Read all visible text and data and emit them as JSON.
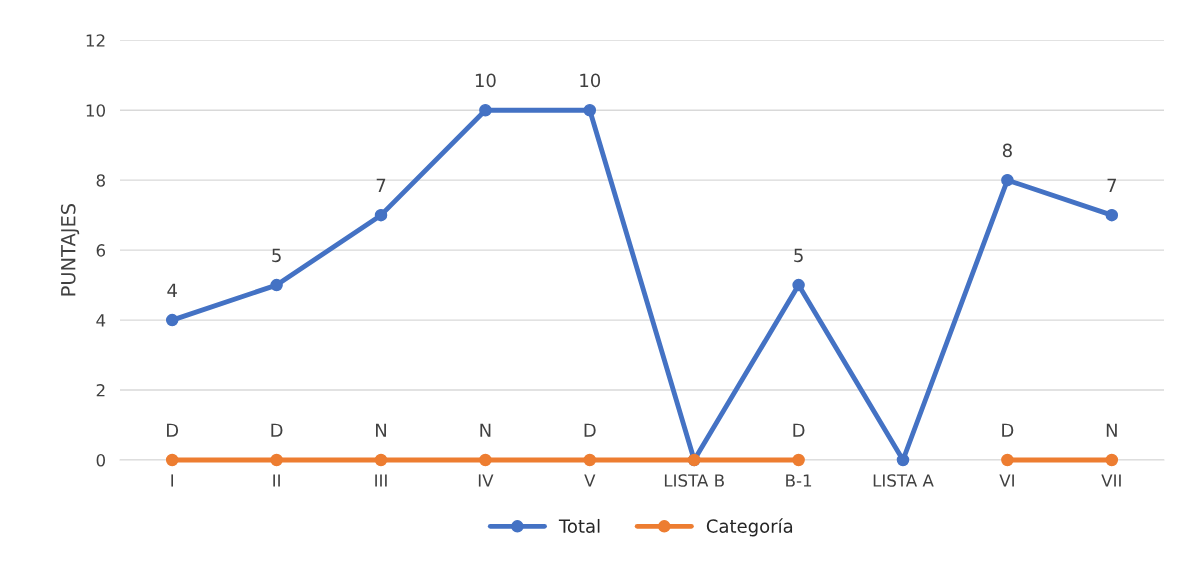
{
  "chart_data": {
    "type": "line",
    "ylabel": "PUNTAJES",
    "categories": [
      "I",
      "II",
      "III",
      "IV",
      "V",
      "LISTA B",
      "B-1",
      "LISTA A",
      "VI",
      "VII"
    ],
    "series": [
      {
        "name": "Total",
        "color": "#4472c4",
        "values": [
          4,
          5,
          7,
          10,
          10,
          0,
          5,
          0,
          8,
          7
        ],
        "value_labels": [
          "4",
          "5",
          "7",
          "10",
          "10",
          null,
          "5",
          null,
          "8",
          "7"
        ]
      },
      {
        "name": "Categoría",
        "color": "#ed7d31",
        "values": [
          0,
          0,
          0,
          0,
          0,
          0,
          0,
          null,
          0,
          0
        ],
        "value_labels": [
          "D",
          "D",
          "N",
          "N",
          "D",
          null,
          "D",
          null,
          "D",
          "N"
        ]
      }
    ],
    "ylim": [
      0,
      12
    ],
    "yticks": [
      0,
      2,
      4,
      6,
      8,
      10,
      12
    ],
    "grid": "y",
    "legend": "bottom",
    "marker": "circle",
    "line_style": "solid"
  }
}
